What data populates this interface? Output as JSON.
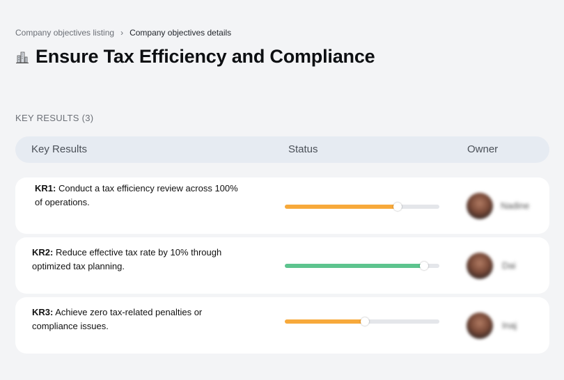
{
  "breadcrumb": {
    "parent": "Company objectives listing",
    "separator": "›",
    "current": "Company objectives details"
  },
  "page": {
    "icon": "building-icon",
    "title": "Ensure Tax Efficiency and Compliance"
  },
  "key_results_section": {
    "label": "KEY RESULTS (3)"
  },
  "table": {
    "headers": {
      "key_results": "Key Results",
      "status": "Status",
      "owner": "Owner"
    },
    "rows": [
      {
        "id": "KR1:",
        "text": "Conduct a tax efficiency review across 100% of operations.",
        "progress": 0.73,
        "color": "#f7a93b",
        "owner": "Nadine"
      },
      {
        "id": "KR2:",
        "text": "Reduce effective tax rate by 10% through optimized tax planning.",
        "progress": 0.9,
        "color": "#5dc48e",
        "owner": "Dai"
      },
      {
        "id": "KR3:",
        "text": "Achieve zero tax-related penalties or compliance issues.",
        "progress": 0.52,
        "color": "#f7a93b",
        "owner": "Inaj"
      }
    ]
  }
}
